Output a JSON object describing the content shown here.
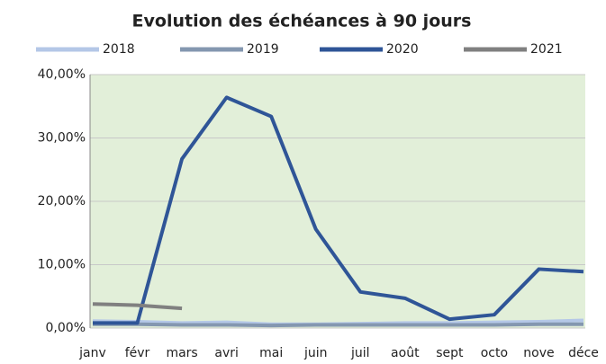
{
  "chart_data": {
    "type": "line",
    "title": "Evolution des échéances à 90 jours",
    "categories": [
      "janv",
      "févr",
      "mars",
      "avri",
      "mai",
      "juin",
      "juil",
      "août",
      "sept",
      "octo",
      "nove",
      "déce"
    ],
    "series": [
      {
        "name": "2018",
        "color": "#b4c7e7",
        "values": [
          1.1,
          1.0,
          0.8,
          0.9,
          0.6,
          0.6,
          0.7,
          0.8,
          0.8,
          0.9,
          1.0,
          1.2
        ]
      },
      {
        "name": "2019",
        "color": "#8497b0",
        "values": [
          0.6,
          0.6,
          0.5,
          0.5,
          0.4,
          0.5,
          0.5,
          0.5,
          0.5,
          0.5,
          0.6,
          0.6
        ]
      },
      {
        "name": "2020",
        "color": "#2f5597",
        "values": [
          0.8,
          0.8,
          26.7,
          36.4,
          33.4,
          15.6,
          5.7,
          4.7,
          1.4,
          2.1,
          9.3,
          8.9
        ]
      },
      {
        "name": "2021",
        "color": "#808080",
        "values": [
          3.8,
          3.6,
          3.1,
          null,
          null,
          null,
          null,
          null,
          null,
          null,
          null,
          null
        ]
      }
    ],
    "ylim": [
      0,
      40
    ],
    "yticks": [
      {
        "value": 0,
        "label": "0,00%"
      },
      {
        "value": 10,
        "label": "10,00%"
      },
      {
        "value": 20,
        "label": "20,00%"
      },
      {
        "value": 30,
        "label": "30,00%"
      },
      {
        "value": 40,
        "label": "40,00%"
      }
    ],
    "grid": true,
    "legend": "top",
    "plot_background": "#e2efd9"
  }
}
